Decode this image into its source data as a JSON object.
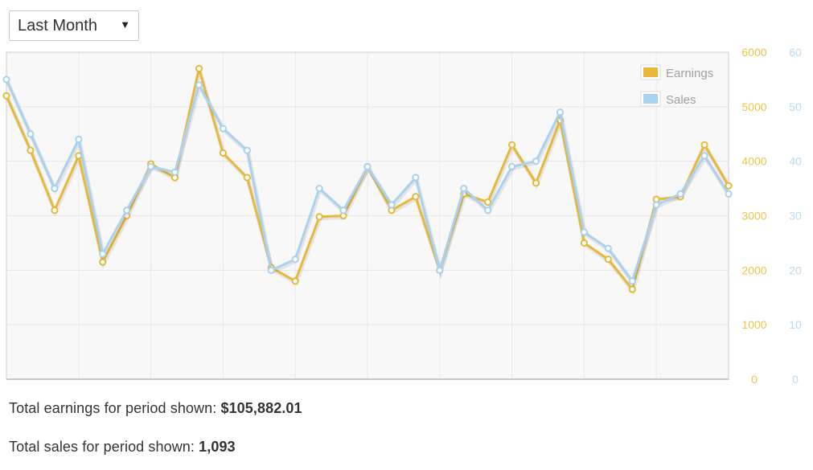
{
  "range_select": {
    "selected": "Last Month",
    "caret": "▼"
  },
  "summary": {
    "earnings_label": "Total earnings for period shown: ",
    "earnings_value": "$105,882.01",
    "sales_label": "Total sales for period shown: ",
    "sales_value": "1,093"
  },
  "chart_data": {
    "type": "line",
    "title": "",
    "xlabel": "",
    "ylabel": "",
    "grid": true,
    "legend": "top-right",
    "y_axes": [
      {
        "side": "right",
        "range": [
          0,
          6000
        ],
        "ticks": [
          "0",
          "1000",
          "2000",
          "3000",
          "4000",
          "5000",
          "6000"
        ],
        "color": "#eec64a"
      },
      {
        "side": "right-outer",
        "range": [
          0,
          60
        ],
        "ticks": [
          "0",
          "10",
          "20",
          "30",
          "40",
          "50",
          "60"
        ],
        "color": "#b8dcf0"
      }
    ],
    "series": [
      {
        "name": "Earnings",
        "axis": 0,
        "color": "#e8b83a",
        "values": [
          5200,
          4200,
          3100,
          4100,
          2150,
          3000,
          3950,
          3700,
          5700,
          4150,
          3700,
          2050,
          1800,
          2980,
          3000,
          3900,
          3100,
          3350,
          2000,
          3400,
          3250,
          4300,
          3600,
          4750,
          2500,
          2200,
          1650,
          3300,
          3350,
          4300,
          3550
        ]
      },
      {
        "name": "Sales",
        "axis": 1,
        "color": "#a9d1f0",
        "values": [
          55,
          45,
          35,
          44,
          23,
          31,
          39,
          38,
          54,
          46,
          42,
          20,
          22,
          35,
          31,
          39,
          32,
          37,
          20,
          35,
          31,
          39,
          40,
          49,
          27,
          24,
          18,
          32,
          34,
          41,
          34
        ]
      }
    ]
  }
}
